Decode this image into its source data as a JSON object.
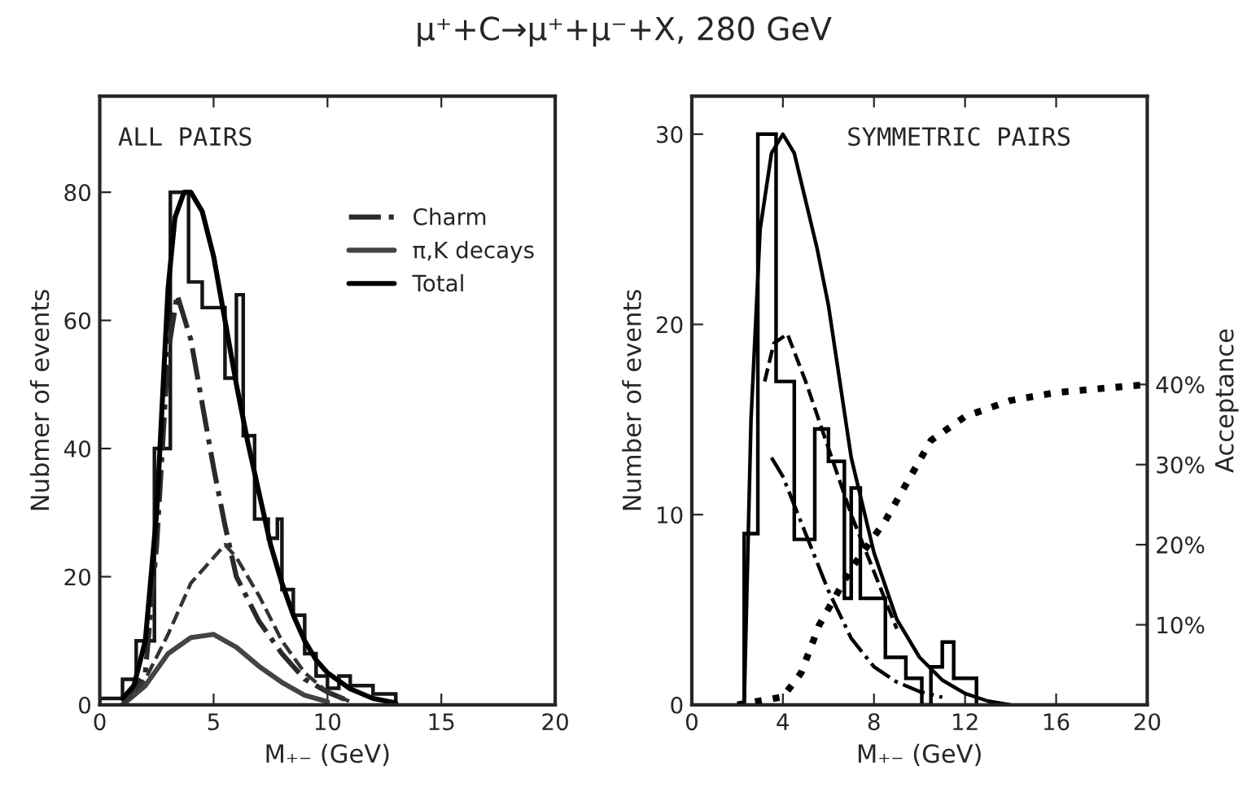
{
  "chart_data": [
    {
      "type": "line",
      "title": "μ⁺+C→μ⁺+μ⁻+X, 280 GeV",
      "xlabel": "M₊₋ (GeV)",
      "ylabel": "Nubmer of events",
      "annotations": [
        "ALL PAIRS"
      ],
      "xlim": [
        0,
        20
      ],
      "ylim": [
        0,
        95
      ],
      "xticks": [
        0,
        5,
        10,
        15,
        20
      ],
      "yticks": [
        0,
        20,
        40,
        60,
        80
      ],
      "grid": false,
      "legend": "top right",
      "series": [
        {
          "name": "Charm",
          "color": "#2a2a2a",
          "line_style": "dashdot",
          "x": [
            1,
            2,
            2.5,
            3,
            3.4,
            4,
            4.5,
            5,
            5.5,
            6,
            7,
            8,
            9,
            10,
            11
          ],
          "values": [
            0,
            5,
            25,
            55,
            64,
            57,
            47,
            37,
            28,
            20,
            13,
            8,
            4,
            2,
            0.5
          ]
        },
        {
          "name": "π,K decays",
          "color": "#444444",
          "line_style": "solid",
          "x": [
            1,
            2,
            3,
            4,
            5,
            6,
            7,
            8,
            9,
            10
          ],
          "values": [
            0,
            3,
            8,
            10.5,
            11,
            9,
            6,
            3.5,
            1.5,
            0.5
          ]
        },
        {
          "name": "Total",
          "color": "#000000",
          "line_style": "solid",
          "x": [
            1,
            1.5,
            2,
            2.5,
            3,
            3.3,
            3.7,
            4,
            4.5,
            5,
            5.5,
            6,
            6.5,
            7,
            7.5,
            8,
            8.5,
            9,
            9.5,
            10,
            11,
            12,
            13
          ],
          "values": [
            1,
            3,
            10,
            30,
            65,
            76,
            80,
            80,
            77,
            70,
            60,
            50,
            41,
            33,
            25,
            19,
            14,
            10,
            7,
            5,
            2.5,
            1,
            0.3
          ]
        },
        {
          "color": "#333333",
          "line_style": "dashed",
          "x": [
            1,
            2,
            3,
            4,
            5,
            5.5,
            6,
            7,
            8,
            9,
            10,
            11
          ],
          "values": [
            0,
            4,
            11,
            19,
            23,
            25,
            23,
            17,
            10,
            5,
            2,
            0.5
          ]
        },
        {
          "type": "histogram",
          "color": "#151515",
          "bins": [
            0,
            1.0,
            1.6,
            2.4,
            3.1,
            3.9,
            4.5,
            5.5,
            6.0,
            6.3,
            6.8,
            7.4,
            7.8,
            8.0,
            8.5,
            9.0,
            9.5,
            10.0,
            10.5,
            11.0,
            12.0,
            13.0
          ],
          "values": [
            1,
            4,
            10,
            40,
            80,
            66,
            62,
            51,
            64,
            42,
            29,
            26,
            29,
            18,
            14,
            8,
            4.5,
            2.6,
            4.5,
            3,
            1.7
          ]
        }
      ]
    },
    {
      "type": "line",
      "xlabel": "M₊₋ (GeV)",
      "ylabel": "Number of events",
      "y2label": "Acceptance",
      "annotations": [
        "SYMMETRIC PAIRS"
      ],
      "xlim": [
        0,
        20
      ],
      "ylim": [
        0,
        32
      ],
      "y2lim": [
        0,
        76
      ],
      "xticks": [
        0,
        4,
        8,
        12,
        16,
        20
      ],
      "yticks": [
        0,
        10,
        20,
        30
      ],
      "y2ticks": [
        {
          "value": 10,
          "label": "10%"
        },
        {
          "value": 20,
          "label": "20%"
        },
        {
          "value": 30,
          "label": "30%"
        },
        {
          "value": 40,
          "label": "40%"
        }
      ],
      "grid": false,
      "series": [
        {
          "type": "histogram",
          "color": "#000000",
          "bins": [
            2.3,
            2.9,
            3.7,
            4.5,
            5.4,
            6.0,
            6.7,
            7.0,
            7.4,
            8.5,
            9.4,
            10.1,
            10.5,
            11.0,
            11.5,
            12.5
          ],
          "values": [
            9,
            30,
            17,
            8.7,
            14.5,
            12.8,
            5.6,
            11.4,
            5.6,
            2.5,
            1.4,
            0,
            2,
            3.3,
            1.4
          ]
        },
        {
          "type": "line",
          "color": "#000000",
          "line_style": "solid",
          "x": [
            2.3,
            2.6,
            3,
            3.5,
            4,
            4.5,
            5,
            5.5,
            6,
            6.5,
            7,
            7.5,
            8,
            9,
            10,
            11,
            12,
            13,
            14
          ],
          "values": [
            0,
            15,
            25,
            29,
            30,
            29,
            26.5,
            24,
            21,
            17,
            13,
            10.5,
            8,
            4.5,
            2.5,
            1.3,
            0.6,
            0.2,
            0
          ]
        },
        {
          "type": "line",
          "color": "#000000",
          "line_style": "dashed",
          "x": [
            3.2,
            3.6,
            4.2,
            5,
            6,
            7,
            8,
            9
          ],
          "values": [
            17,
            19,
            19.5,
            17,
            13.5,
            10,
            7,
            4
          ]
        },
        {
          "type": "line",
          "color": "#000000",
          "line_style": "dashdot",
          "x": [
            3.5,
            4,
            5,
            6,
            7,
            8,
            9,
            10,
            11
          ],
          "values": [
            13,
            12,
            9,
            6,
            3.5,
            2,
            1.2,
            0.7,
            0.4
          ]
        },
        {
          "type": "line",
          "axis": "y2",
          "color": "#000000",
          "line_style": "dotted",
          "x": [
            2,
            4,
            4.8,
            5.6,
            7,
            8.5,
            9.5,
            10.5,
            12,
            14,
            16,
            20
          ],
          "values": [
            0,
            1,
            4,
            10,
            17,
            23,
            28,
            33,
            36,
            38,
            39,
            40
          ]
        }
      ]
    }
  ]
}
